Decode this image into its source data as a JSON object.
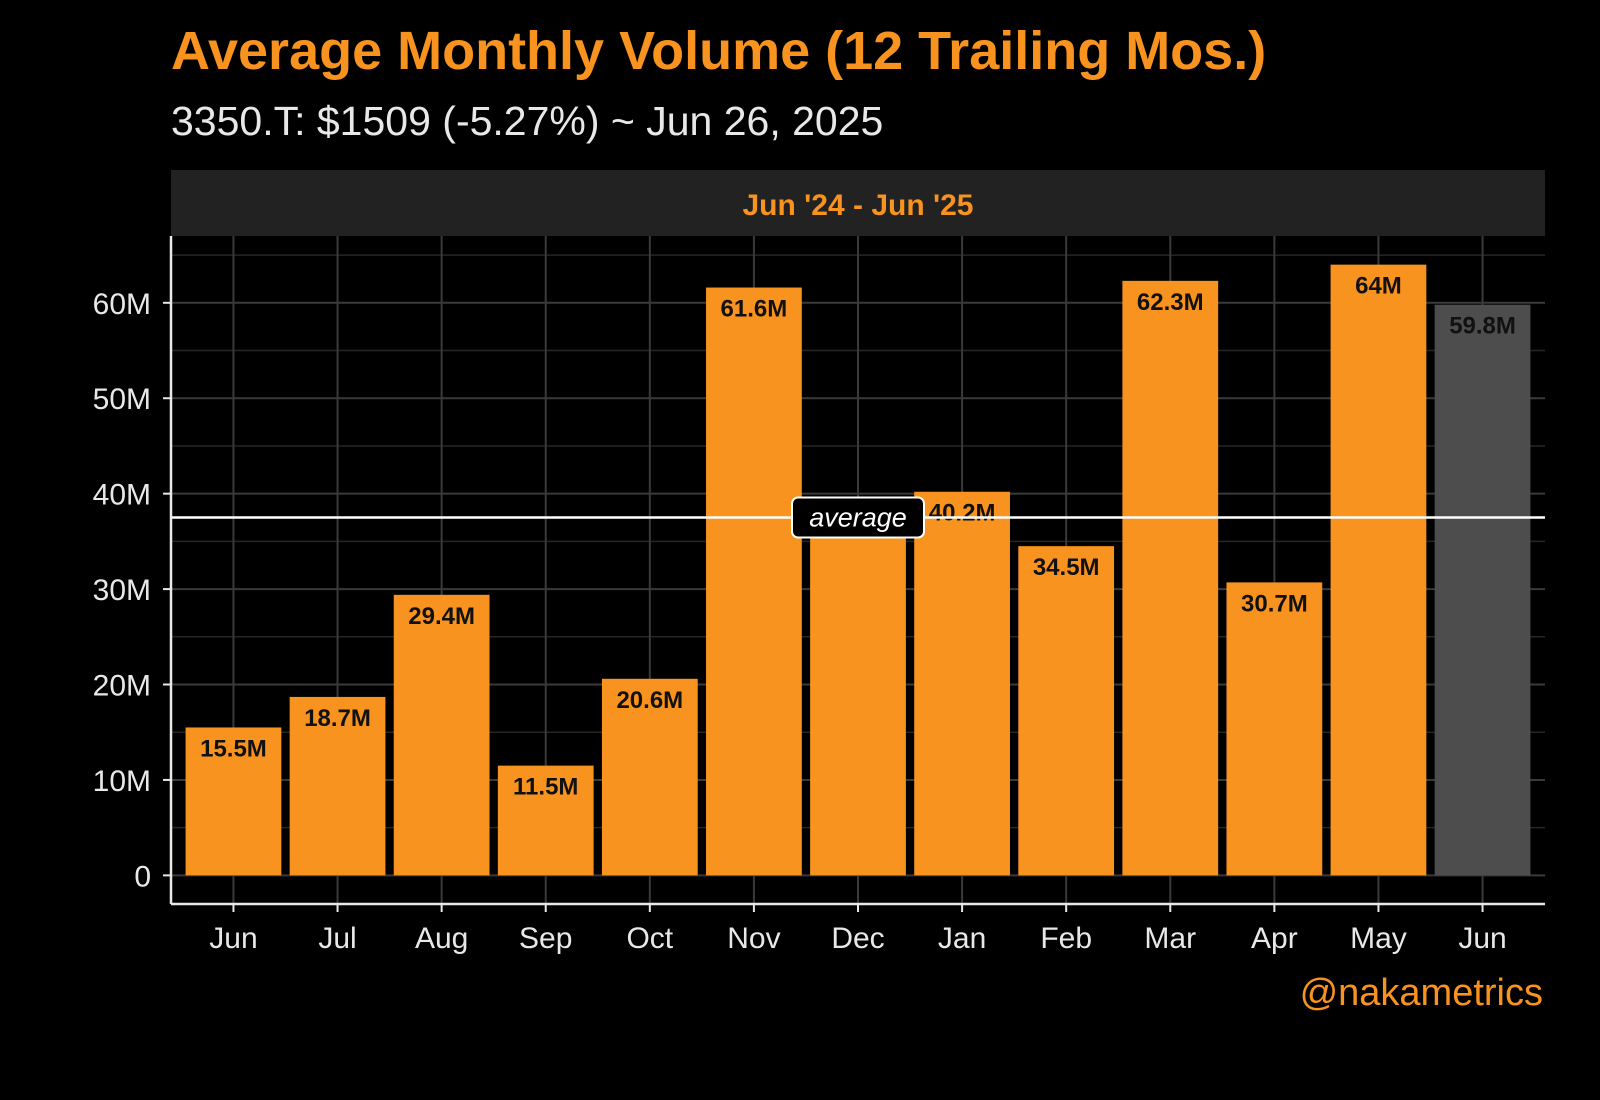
{
  "chart_data": {
    "type": "bar",
    "title": "Average Monthly Volume (12 Trailing Mos.)",
    "subtitle": "3350.T: $1509 (-5.27%) ~ Jun 26, 2025",
    "facet_label": "Jun '24 - Jun '25",
    "categories": [
      "Jun",
      "Jul",
      "Aug",
      "Sep",
      "Oct",
      "Nov",
      "Dec",
      "Jan",
      "Feb",
      "Mar",
      "Apr",
      "May",
      "Jun"
    ],
    "values": [
      15.5,
      18.7,
      29.4,
      11.5,
      20.6,
      61.6,
      37.4,
      40.2,
      34.5,
      62.3,
      30.7,
      64,
      59.8
    ],
    "labels": [
      "15.5M",
      "18.7M",
      "29.4M",
      "11.5M",
      "20.6M",
      "61.6M",
      "",
      "40.2M",
      "34.5M",
      "62.3M",
      "30.7M",
      "64M",
      "59.8M"
    ],
    "value_unit": "M",
    "y_ticks": [
      0,
      10,
      20,
      30,
      40,
      50,
      60
    ],
    "y_tick_labels": [
      "0",
      "10M",
      "20M",
      "30M",
      "40M",
      "50M",
      "60M"
    ],
    "ylim": [
      -3,
      67
    ],
    "average_value": 37.5,
    "average_label": "average",
    "grid": true,
    "legend": "none",
    "colors": {
      "bar": "#F7931E",
      "current_bar": "#4D4D4D",
      "background": "#000000",
      "grid": "#3A3A3A",
      "facet_strip": "#222222",
      "average_line": "#FFFFFF"
    }
  },
  "watermark": "@nakametrics"
}
